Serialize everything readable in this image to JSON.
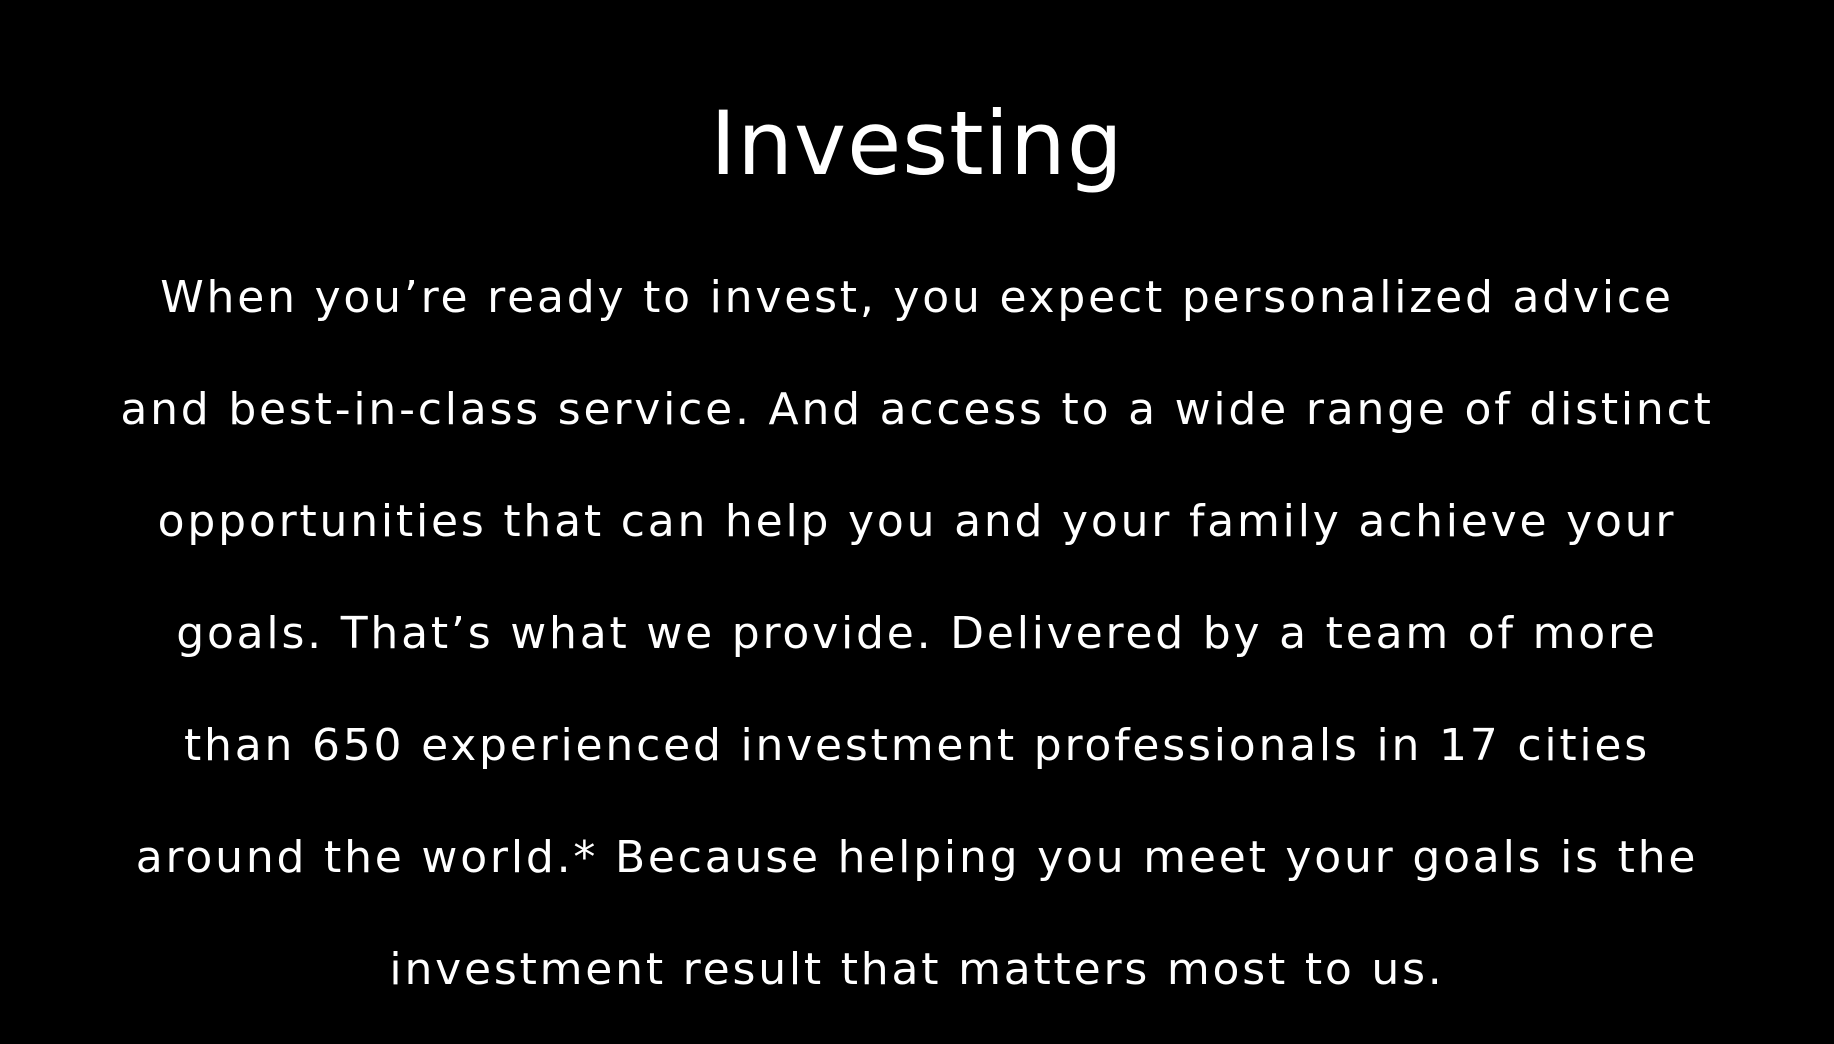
{
  "section": {
    "title": "Investing",
    "paragraph_lines": [
      "When you’re ready to invest, you expect personalized advice",
      "and best-in-class service. And access to a wide range of distinct",
      "opportunities that can help you and your family achieve your",
      "goals. That’s what we provide. Delivered by a team of more",
      "than 650 experienced investment professionals in 17 cities",
      "around the world.* Because helping you meet your goals is the",
      "investment result that matters most to us."
    ]
  },
  "colors": {
    "background": "#000000",
    "text": "#ffffff"
  }
}
